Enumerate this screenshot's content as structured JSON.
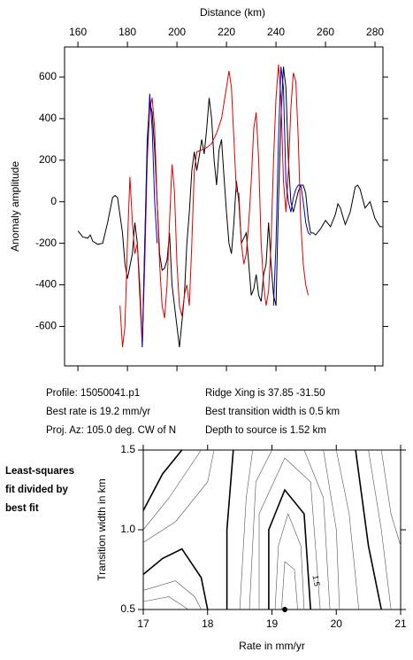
{
  "chart_data": [
    {
      "type": "line",
      "xlabel": "Distance (km)",
      "ylabel": "Anomaly amplitude",
      "xlim": [
        154.6,
        283.2
      ],
      "ylim": [
        -790,
        745
      ],
      "xticks": [
        160,
        180,
        200,
        220,
        240,
        260,
        280
      ],
      "yticks": [
        -600,
        -400,
        -200,
        0,
        200,
        400,
        600
      ],
      "series": [
        {
          "color": "#000000",
          "x": [
            160,
            162,
            164,
            165,
            166,
            168,
            170,
            172,
            174,
            175,
            176,
            178,
            179,
            180,
            182,
            183,
            184,
            185,
            186,
            187,
            188,
            189,
            190,
            191,
            192,
            193,
            194,
            195,
            196,
            197,
            198,
            199,
            200,
            201,
            202,
            203,
            204,
            205,
            206,
            207,
            208,
            209,
            210,
            211,
            212,
            213,
            214,
            215,
            216,
            217,
            218,
            219,
            220,
            221,
            222,
            223,
            224,
            225,
            226,
            228,
            229,
            230,
            231,
            232,
            233,
            234,
            235,
            236,
            237,
            238,
            239,
            240,
            241,
            242,
            243,
            244,
            245,
            246,
            247,
            248,
            249,
            250,
            251,
            252,
            253,
            254,
            255,
            256,
            258,
            260,
            262,
            264,
            265,
            266,
            268,
            270,
            272,
            273,
            274,
            276,
            278,
            280,
            282,
            283
          ],
          "values": [
            -140,
            -170,
            -175,
            -160,
            -190,
            -205,
            -200,
            -100,
            20,
            30,
            20,
            -150,
            -300,
            -370,
            -250,
            -100,
            -200,
            -450,
            -700,
            -200,
            300,
            480,
            430,
            250,
            0,
            -250,
            -330,
            -320,
            -280,
            -150,
            -400,
            -500,
            -600,
            -700,
            -580,
            -450,
            -200,
            -50,
            150,
            240,
            150,
            220,
            300,
            230,
            350,
            500,
            400,
            200,
            80,
            250,
            300,
            120,
            -50,
            -200,
            -250,
            -100,
            100,
            0,
            -200,
            -150,
            -300,
            -450,
            -420,
            -350,
            -450,
            -480,
            -350,
            -300,
            -100,
            -300,
            -450,
            -500,
            0,
            400,
            650,
            550,
            200,
            0,
            -50,
            0,
            50,
            80,
            80,
            40,
            -80,
            -150,
            -150,
            -160,
            -130,
            -90,
            -120,
            -60,
            -10,
            -30,
            -110,
            -50,
            70,
            80,
            60,
            -30,
            0,
            -80,
            -120,
            -120
          ]
        },
        {
          "color": "#e00000",
          "x": [
            177,
            178,
            179,
            180,
            181,
            182,
            183,
            184,
            185,
            186,
            187,
            188,
            189,
            190,
            191,
            192,
            193,
            194,
            195,
            196,
            197,
            198,
            199,
            200,
            201,
            202,
            203,
            204,
            205,
            206,
            207,
            208,
            210,
            212,
            214,
            216,
            218,
            220,
            221,
            222,
            223,
            224,
            225,
            226,
            227,
            228,
            229,
            230,
            231,
            232,
            233,
            234,
            235,
            236,
            237,
            238,
            239,
            240,
            241,
            242,
            243,
            244,
            245,
            246,
            247,
            248,
            249,
            250,
            251,
            252,
            253
          ],
          "values": [
            -500,
            -700,
            -600,
            -200,
            120,
            -100,
            -250,
            -200,
            -400,
            -680,
            -300,
            200,
            450,
            500,
            350,
            0,
            -300,
            -500,
            -560,
            -400,
            -100,
            180,
            50,
            -300,
            -500,
            -550,
            -450,
            -400,
            -500,
            -200,
            150,
            240,
            250,
            260,
            280,
            330,
            400,
            550,
            630,
            550,
            300,
            50,
            40,
            -200,
            -300,
            -250,
            -100,
            100,
            350,
            430,
            200,
            -200,
            -400,
            -500,
            -430,
            -200,
            200,
            500,
            660,
            500,
            100,
            -50,
            150,
            450,
            620,
            580,
            300,
            -100,
            -300,
            -400,
            -450
          ]
        },
        {
          "color": "#0000d0",
          "x": [
            186,
            187,
            188,
            189,
            190,
            191,
            192,
            null,
            239,
            240,
            241,
            242,
            243,
            244,
            245,
            246,
            247,
            248,
            249,
            250,
            251,
            252,
            253,
            254
          ],
          "values": [
            -700,
            -200,
            250,
            520,
            350,
            0,
            -200,
            null,
            -500,
            -200,
            300,
            650,
            550,
            100,
            0,
            -50,
            20,
            60,
            80,
            80,
            0,
            -100,
            -150,
            -160
          ]
        }
      ]
    },
    {
      "type": "contour",
      "xlabel": "Rate in mm/yr",
      "ylabel": "Transition width in km",
      "xlim": [
        17,
        21
      ],
      "ylim": [
        0.5,
        1.5
      ],
      "xticks": [
        17,
        18,
        19,
        20,
        21
      ],
      "yticks": [
        0.5,
        {
          "value": 1,
          "label": "1.0"
        },
        1.5
      ],
      "contours": [
        {
          "bold": true,
          "x": [
            17,
            17.3,
            17.6
          ],
          "y": [
            1.12,
            1.35,
            1.5
          ]
        },
        {
          "bold": false,
          "x": [
            17,
            17.4,
            17.9
          ],
          "y": [
            1.0,
            1.2,
            1.5
          ]
        },
        {
          "bold": false,
          "x": [
            17,
            17.5,
            18.0,
            18.1
          ],
          "y": [
            0.92,
            1.05,
            1.3,
            1.5
          ]
        },
        {
          "bold": true,
          "x": [
            17,
            17.3,
            17.6,
            17.9,
            18.0
          ],
          "y": [
            0.72,
            0.82,
            0.88,
            0.7,
            0.5
          ]
        },
        {
          "bold": false,
          "x": [
            17,
            17.5,
            17.8,
            17.9
          ],
          "y": [
            0.62,
            0.68,
            0.58,
            0.5
          ]
        },
        {
          "bold": false,
          "x": [
            17,
            17.4,
            17.7
          ],
          "y": [
            0.55,
            0.58,
            0.5
          ]
        },
        {
          "bold": true,
          "x": [
            18.3,
            18.3,
            18.4
          ],
          "y": [
            0.5,
            1.0,
            1.5
          ]
        },
        {
          "bold": false,
          "x": [
            18.5,
            18.6,
            18.7
          ],
          "y": [
            0.5,
            1.2,
            1.5
          ]
        },
        {
          "bold": false,
          "x": [
            18.65,
            18.75,
            19.0
          ],
          "y": [
            0.5,
            1.3,
            1.5
          ]
        },
        {
          "bold": false,
          "x": [
            18.8,
            18.8,
            19.2,
            19.6,
            19.75
          ],
          "y": [
            0.5,
            1.1,
            1.45,
            1.3,
            0.5
          ]
        },
        {
          "bold": true,
          "x": [
            18.95,
            18.95,
            19.2,
            19.5,
            19.6
          ],
          "y": [
            0.5,
            1.0,
            1.25,
            1.1,
            0.5
          ]
        },
        {
          "bold": false,
          "x": [
            19.05,
            19.1,
            19.25,
            19.45,
            19.5
          ],
          "y": [
            0.5,
            0.9,
            1.1,
            0.9,
            0.5
          ]
        },
        {
          "bold": false,
          "x": [
            19.15,
            19.2,
            19.35,
            19.4
          ],
          "y": [
            0.5,
            0.8,
            0.75,
            0.5
          ]
        },
        {
          "bold": false,
          "x": [
            19.5,
            19.8,
            19.9
          ],
          "y": [
            1.5,
            1.2,
            0.5
          ]
        },
        {
          "bold": false,
          "x": [
            19.8,
            20.0,
            20.05
          ],
          "y": [
            1.5,
            1.0,
            0.5
          ]
        },
        {
          "bold": false,
          "x": [
            20.0,
            20.2,
            20.35
          ],
          "y": [
            1.5,
            1.1,
            0.5
          ]
        },
        {
          "bold": true,
          "x": [
            20.3,
            20.5,
            20.7
          ],
          "y": [
            1.5,
            0.9,
            0.5
          ]
        },
        {
          "bold": false,
          "x": [
            20.5,
            20.7,
            20.85
          ],
          "y": [
            1.5,
            1.0,
            0.5
          ]
        },
        {
          "bold": false,
          "x": [
            20.7,
            20.85,
            21
          ],
          "y": [
            1.5,
            1.1,
            0.9
          ]
        }
      ],
      "point": {
        "x": 19.2,
        "y": 0.5
      },
      "annotation": {
        "text": "1.5",
        "x": 19.68,
        "y": 0.68
      }
    }
  ],
  "info": {
    "profile": "Profile: 15050041.p1",
    "rate": "Best rate is 19.2 mm/yr",
    "azimuth": "Proj. Az: 105.0 deg. CW of N",
    "ridge": "Ridge Xing is 37.85 -31.50",
    "width": "Best transition width is 0.5 km",
    "depth": "Depth to source is   1.52 km"
  },
  "side_note": [
    "Least-squares",
    "fit divided by",
    "best fit"
  ]
}
